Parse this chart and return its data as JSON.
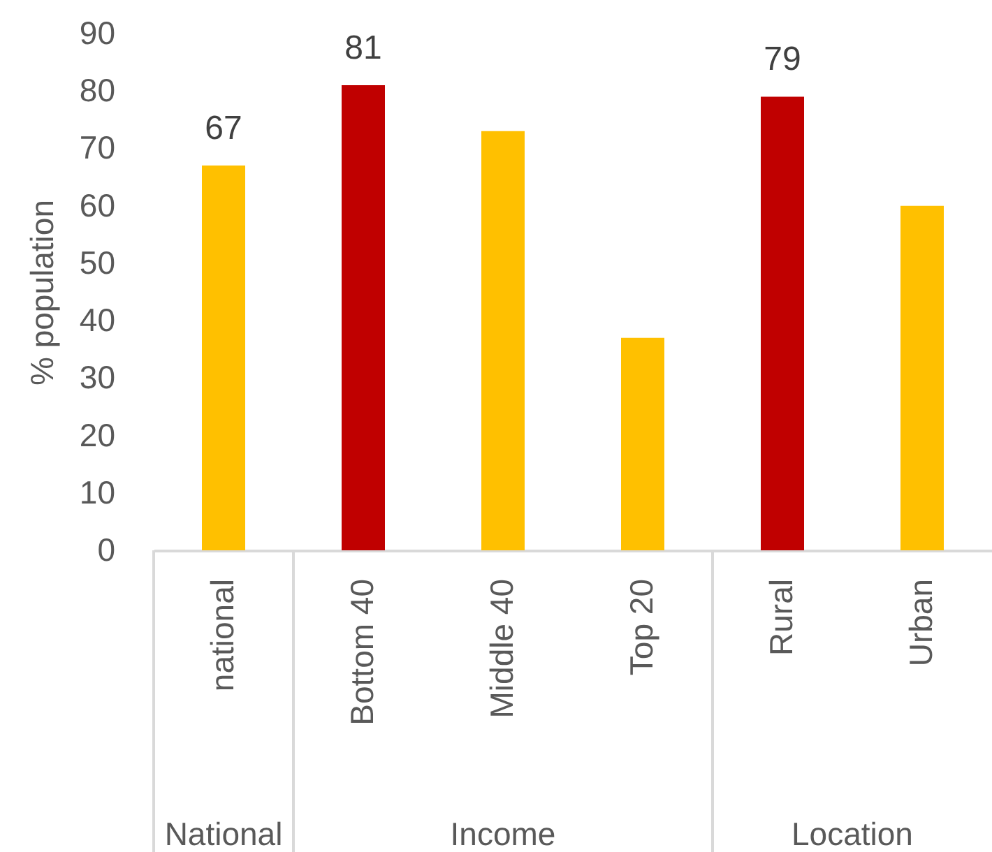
{
  "chart_data": {
    "type": "bar",
    "ylabel": "% population",
    "categories": [
      "national",
      "Bottom 40",
      "Middle 40",
      "Top 20",
      "Rural",
      "Urban"
    ],
    "values": [
      67,
      81,
      73,
      37,
      79,
      60
    ],
    "colors": [
      "#ffc000",
      "#c00000",
      "#ffc000",
      "#ffc000",
      "#c00000",
      "#ffc000"
    ],
    "value_labels": [
      "67",
      "81",
      null,
      null,
      "79",
      null
    ],
    "ylim": [
      0,
      90
    ],
    "yticks": [
      0,
      10,
      20,
      30,
      40,
      50,
      60,
      70,
      80,
      90
    ],
    "annotations": [
      "National",
      "Income",
      "Location"
    ]
  }
}
